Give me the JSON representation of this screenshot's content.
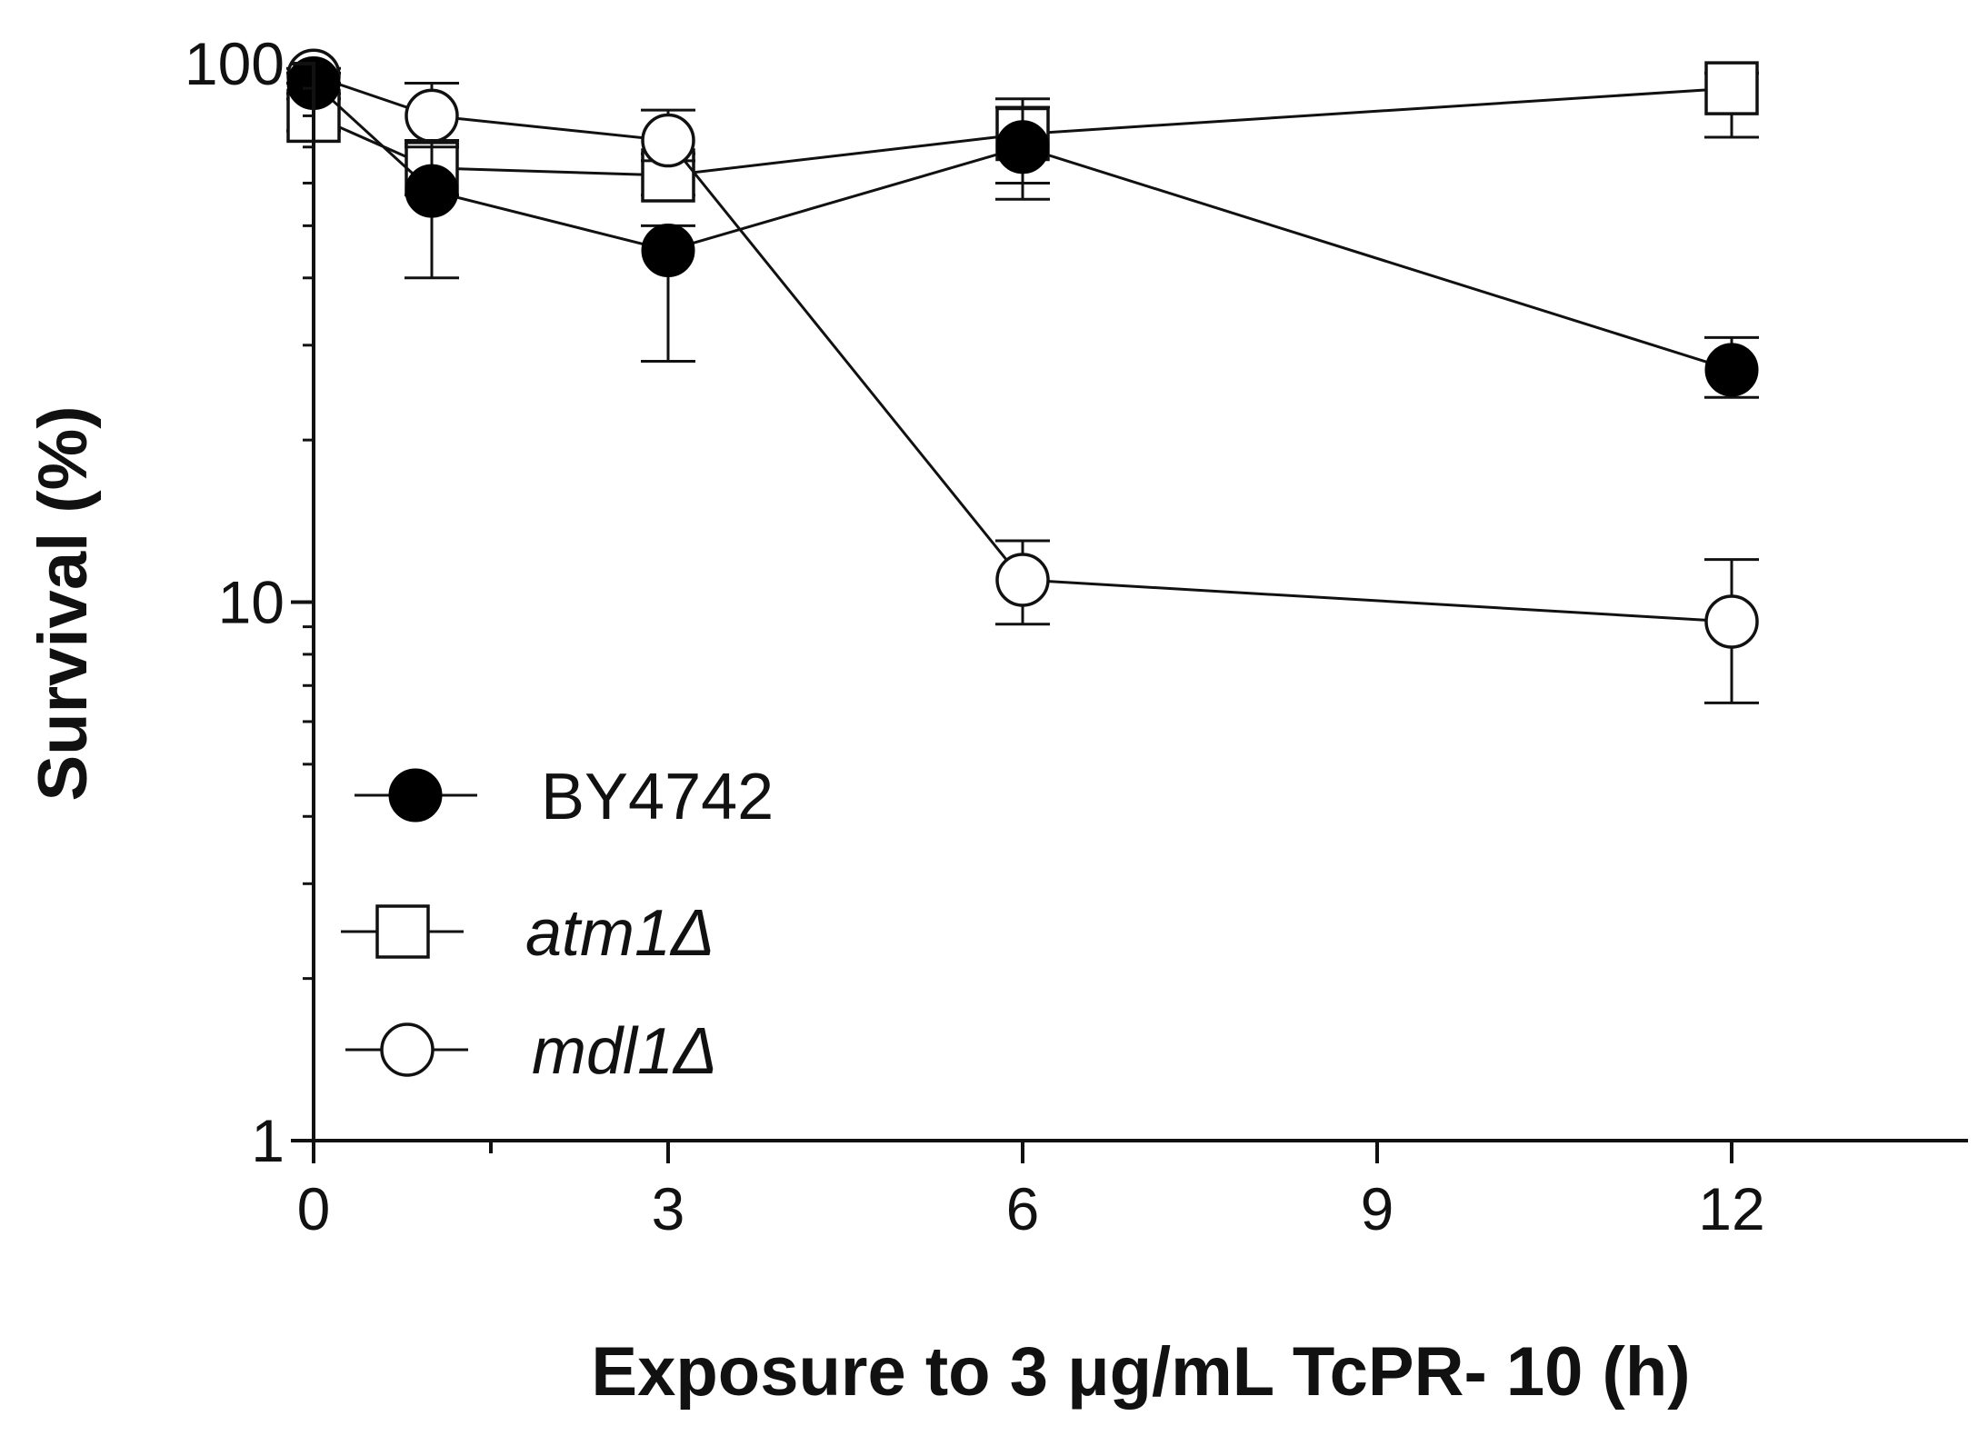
{
  "chart_data": {
    "type": "line",
    "xlabel": "Exposure to 3 μg/mL TcPR- 10 (h)",
    "ylabel": "Survival (%)",
    "y_scale": "log",
    "xlim": [
      0,
      14
    ],
    "ylim": [
      1,
      100
    ],
    "x_ticks": [
      0,
      3,
      6,
      9,
      12
    ],
    "x_minor_ticks": [
      1.5
    ],
    "y_ticks": [
      1,
      10,
      100
    ],
    "y_tick_labels": [
      "1",
      "10",
      "100"
    ],
    "legend_position": "bottom-left",
    "series": [
      {
        "name": "BY4742",
        "marker": "filled-circle",
        "italic": false,
        "x": [
          0,
          1,
          3,
          6,
          12
        ],
        "y": [
          92,
          58,
          45,
          70,
          27
        ],
        "err_low": [
          88,
          40,
          28,
          56,
          24
        ],
        "err_high": [
          96,
          72,
          50,
          83,
          31
        ]
      },
      {
        "name": "atm1Δ",
        "marker": "open-square",
        "italic": true,
        "x": [
          0,
          1,
          3,
          6,
          12
        ],
        "y": [
          80,
          64,
          62,
          74,
          90
        ],
        "err_low": [
          75,
          57,
          57,
          60,
          73
        ],
        "err_high": [
          86,
          71,
          68,
          86,
          96
        ]
      },
      {
        "name": "mdl1Δ",
        "marker": "open-circle",
        "italic": true,
        "x": [
          0,
          1,
          3,
          6,
          12
        ],
        "y": [
          95,
          80,
          72,
          11,
          9.2
        ],
        "err_low": [
          92,
          70,
          66,
          9.1,
          6.5
        ],
        "err_high": [
          98,
          92,
          82,
          13,
          12
        ]
      }
    ]
  }
}
